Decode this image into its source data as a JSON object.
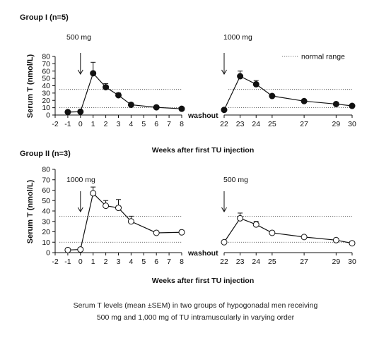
{
  "figure": {
    "caption_line1": "Serum T levels (mean ±SEM) in two groups of hypogonadal men receiving",
    "caption_line2": "500 mg and 1,000 mg of TU intramuscularly in varying order"
  },
  "chart_data": [
    {
      "type": "line",
      "title": "Group I (n=5)",
      "xlabel": "Weeks after first TU injection",
      "ylabel": "Serum T (nmol/L)",
      "ylim": [
        0,
        80
      ],
      "yticks": [
        0,
        10,
        20,
        30,
        40,
        50,
        60,
        70,
        80
      ],
      "normal_range": [
        10,
        35
      ],
      "normal_range_label": "normal range",
      "washout_label": "washout",
      "marker": "filled",
      "left_panel": {
        "xlim": [
          -2,
          8
        ],
        "xticks": [
          -2,
          -1,
          0,
          1,
          2,
          3,
          4,
          5,
          6,
          7,
          8
        ],
        "dose_label": "500 mg",
        "injection_week": 0,
        "points": [
          {
            "x": -1,
            "y": 4,
            "sem": 0
          },
          {
            "x": 0,
            "y": 4.5,
            "sem": 0
          },
          {
            "x": 1,
            "y": 57,
            "sem": 15
          },
          {
            "x": 2,
            "y": 38,
            "sem": 5
          },
          {
            "x": 3,
            "y": 27,
            "sem": 3
          },
          {
            "x": 4,
            "y": 14,
            "sem": 0
          },
          {
            "x": 6,
            "y": 10.5,
            "sem": 0
          },
          {
            "x": 8,
            "y": 8.5,
            "sem": 0
          }
        ]
      },
      "right_panel": {
        "xlim": [
          22,
          30
        ],
        "xticks": [
          22,
          23,
          24,
          25,
          27,
          29,
          30
        ],
        "dose_label": "1000 mg",
        "injection_week": 22,
        "points": [
          {
            "x": 22,
            "y": 7,
            "sem": 0
          },
          {
            "x": 23,
            "y": 53,
            "sem": 7
          },
          {
            "x": 24,
            "y": 42,
            "sem": 5
          },
          {
            "x": 25,
            "y": 26,
            "sem": 0
          },
          {
            "x": 27,
            "y": 19,
            "sem": 0
          },
          {
            "x": 29,
            "y": 15,
            "sem": 0
          },
          {
            "x": 30,
            "y": 12.5,
            "sem": 0
          }
        ]
      }
    },
    {
      "type": "line",
      "title": "Group II (n=3)",
      "xlabel": "Weeks after first TU injection",
      "ylabel": "Serum T (nmol/L)",
      "ylim": [
        0,
        80
      ],
      "yticks": [
        0,
        10,
        20,
        30,
        40,
        50,
        60,
        70,
        80
      ],
      "normal_range": [
        10,
        35
      ],
      "washout_label": "washout",
      "marker": "open",
      "left_panel": {
        "xlim": [
          -2,
          8
        ],
        "xticks": [
          -2,
          -1,
          0,
          1,
          2,
          3,
          4,
          5,
          6,
          7,
          8
        ],
        "dose_label": "1000 mg",
        "injection_week": 0,
        "points": [
          {
            "x": -1,
            "y": 2.5,
            "sem": 0
          },
          {
            "x": 0,
            "y": 3,
            "sem": 0
          },
          {
            "x": 1,
            "y": 57,
            "sem": 6
          },
          {
            "x": 2,
            "y": 45,
            "sem": 5
          },
          {
            "x": 3,
            "y": 43,
            "sem": 8
          },
          {
            "x": 4,
            "y": 30,
            "sem": 5
          },
          {
            "x": 6,
            "y": 19,
            "sem": 0
          },
          {
            "x": 8,
            "y": 19.5,
            "sem": 2
          }
        ]
      },
      "right_panel": {
        "xlim": [
          22,
          30
        ],
        "xticks": [
          22,
          23,
          24,
          25,
          27,
          29,
          30
        ],
        "dose_label": "500 mg",
        "injection_week": 22,
        "points": [
          {
            "x": 22,
            "y": 10,
            "sem": 0
          },
          {
            "x": 23,
            "y": 33,
            "sem": 5
          },
          {
            "x": 24,
            "y": 27,
            "sem": 3
          },
          {
            "x": 25,
            "y": 19,
            "sem": 0
          },
          {
            "x": 27,
            "y": 15,
            "sem": 0
          },
          {
            "x": 29,
            "y": 12,
            "sem": 0
          },
          {
            "x": 30,
            "y": 9,
            "sem": 0
          }
        ]
      }
    }
  ]
}
